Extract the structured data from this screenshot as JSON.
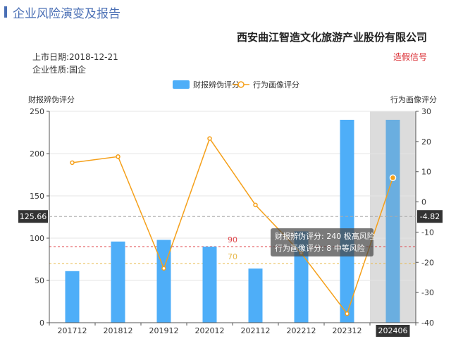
{
  "header": {
    "title": "企业风险演变及报告",
    "company": "西安曲江智造文化旅游产业股份有限公司",
    "listing_date": "上市日期:2018-12-21",
    "nature": "企业性质:国企",
    "warning_link": "造假信号",
    "accent_color": "#4a6fb5",
    "warning_color": "#d9262c"
  },
  "chart_data": {
    "type": "bar",
    "categories": [
      "201712",
      "201812",
      "201912",
      "202012",
      "202112",
      "202212",
      "202312",
      "202406"
    ],
    "series": [
      {
        "name": "财报辨伪评分",
        "type": "bar",
        "axis": "left",
        "color": "#4eaef8",
        "values": [
          61,
          96,
          98,
          90,
          64,
          108,
          240,
          240
        ]
      },
      {
        "name": "行为画像评分",
        "type": "line",
        "axis": "right",
        "color": "#f5a01a",
        "values": [
          13,
          15,
          -22,
          21,
          -1,
          -17,
          -37,
          8
        ]
      }
    ],
    "y_left": {
      "label": "财报辨伪评分",
      "min": 0,
      "max": 250,
      "ticks": [
        0,
        50,
        100,
        150,
        200,
        250
      ]
    },
    "y_right": {
      "label": "行为画像评分",
      "min": -40,
      "max": 30,
      "ticks": [
        -40,
        -30,
        -20,
        -10,
        0,
        10,
        20,
        30
      ]
    },
    "reference_lines": [
      {
        "value": 90,
        "label": "90",
        "color": "#e0454a"
      },
      {
        "value": 70,
        "label": "70",
        "color": "#e7b84a"
      }
    ],
    "crosshair": {
      "left_value_label": "125.66",
      "right_value_label": "-4.82",
      "left_value": 125.66
    },
    "highlight_category": "202406",
    "tooltip": {
      "line1": "财报辨伪评分: 240 极高风险",
      "line2": "行为画像评分: 8 中等风险"
    },
    "legend_position": "top-center",
    "grid": true
  }
}
